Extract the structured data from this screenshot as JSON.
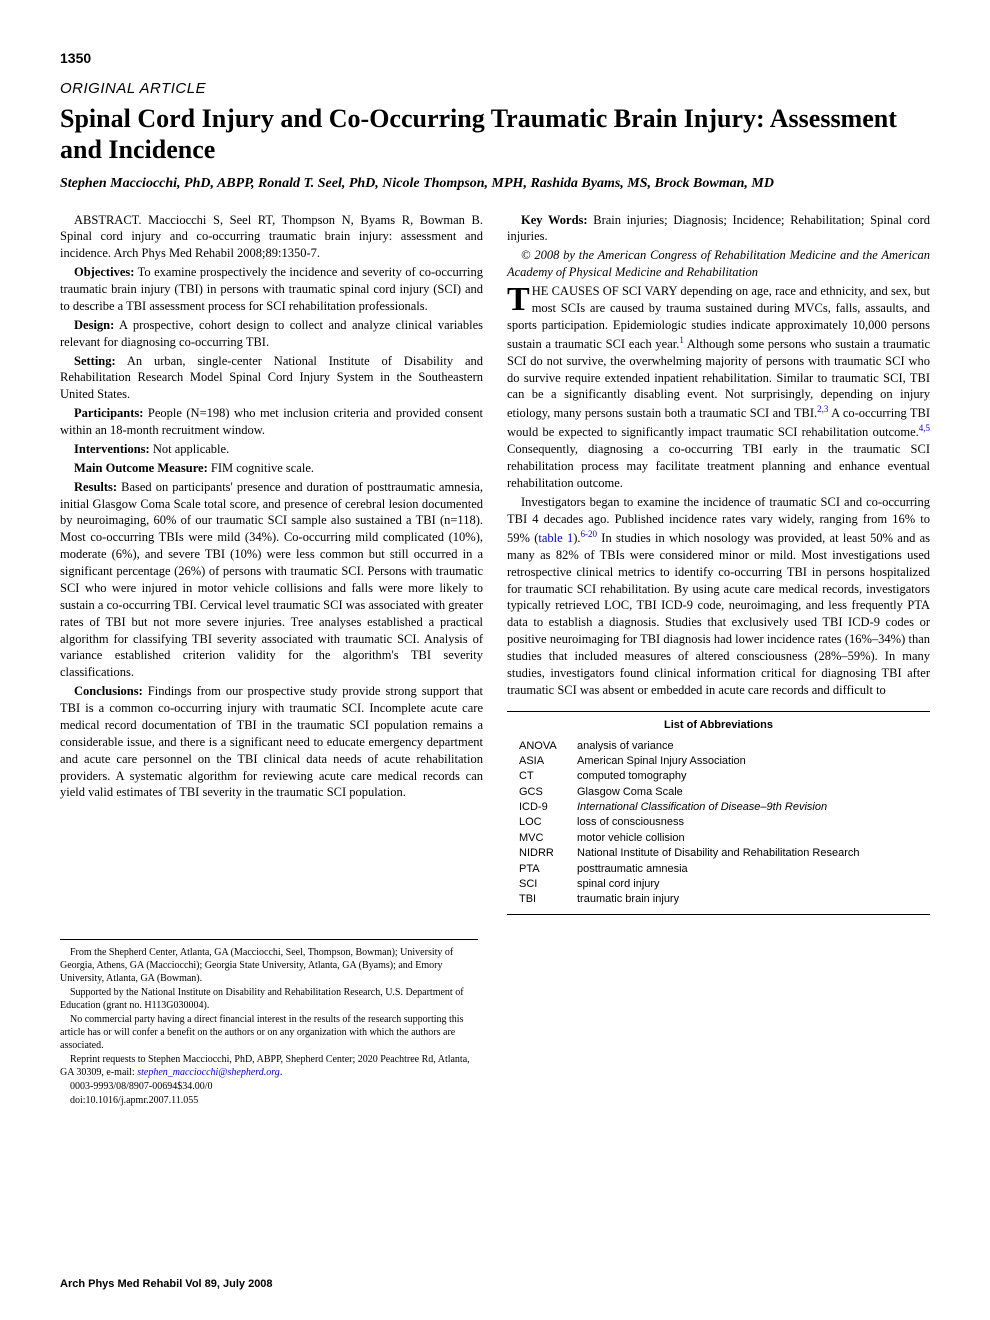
{
  "page_number": "1350",
  "article_type": "ORIGINAL ARTICLE",
  "title": "Spinal Cord Injury and Co-Occurring Traumatic Brain Injury: Assessment and Incidence",
  "authors": "Stephen Macciocchi, PhD, ABPP, Ronald T. Seel, PhD, Nicole Thompson, MPH, Rashida Byams, MS, Brock Bowman, MD",
  "abstract_citation": "ABSTRACT. Macciocchi S, Seel RT, Thompson N, Byams R, Bowman B. Spinal cord injury and co-occurring traumatic brain injury: assessment and incidence. Arch Phys Med Rehabil 2008;89:1350-7.",
  "sections": {
    "objectives": {
      "label": "Objectives:",
      "text": " To examine prospectively the incidence and severity of co-occurring traumatic brain injury (TBI) in persons with traumatic spinal cord injury (SCI) and to describe a TBI assessment process for SCI rehabilitation professionals."
    },
    "design": {
      "label": "Design:",
      "text": " A prospective, cohort design to collect and analyze clinical variables relevant for diagnosing co-occurring TBI."
    },
    "setting": {
      "label": "Setting:",
      "text": " An urban, single-center National Institute of Disability and Rehabilitation Research Model Spinal Cord Injury System in the Southeastern United States."
    },
    "participants": {
      "label": "Participants:",
      "text": " People (N=198) who met inclusion criteria and provided consent within an 18-month recruitment window."
    },
    "interventions": {
      "label": "Interventions:",
      "text": " Not applicable."
    },
    "outcome": {
      "label": "Main Outcome Measure:",
      "text": " FIM cognitive scale."
    },
    "results": {
      "label": "Results:",
      "text": " Based on participants' presence and duration of posttraumatic amnesia, initial Glasgow Coma Scale total score, and presence of cerebral lesion documented by neuroimaging, 60% of our traumatic SCI sample also sustained a TBI (n=118). Most co-occurring TBIs were mild (34%). Co-occurring mild complicated (10%), moderate (6%), and severe TBI (10%) were less common but still occurred in a significant percentage (26%) of persons with traumatic SCI. Persons with traumatic SCI who were injured in motor vehicle collisions and falls were more likely to sustain a co-occurring TBI. Cervical level traumatic SCI was associated with greater rates of TBI but not more severe injuries. Tree analyses established a practical algorithm for classifying TBI severity associated with traumatic SCI. Analysis of variance established criterion validity for the algorithm's TBI severity classifications."
    },
    "conclusions": {
      "label": "Conclusions:",
      "text": " Findings from our prospective study provide strong support that TBI is a common co-occurring injury with traumatic SCI. Incomplete acute care medical record documentation of TBI in the traumatic SCI population remains a considerable issue, and there is a significant need to educate emergency department and acute care personnel on the TBI clinical data needs of acute rehabilitation providers. A systematic algorithm for reviewing acute care medical records can yield valid estimates of TBI severity in the traumatic SCI population."
    }
  },
  "keywords": {
    "label": "Key Words:",
    "text": " Brain injuries; Diagnosis; Incidence; Rehabilitation; Spinal cord injuries."
  },
  "copyright": "© 2008 by the American Congress of Rehabilitation Medicine and the American Academy of Physical Medicine and Rehabilitation",
  "intro_dropcap": "T",
  "intro_first": "HE CAUSES OF SCI VARY depending on age, race and ethnicity, and sex, but most SCIs are caused by trauma sustained during MVCs, falls, assaults, and sports participation. Epidemiologic studies indicate approximately 10,000 persons sustain a traumatic SCI each year.",
  "intro_sup1": "1",
  "intro_second": " Although some persons who sustain a traumatic SCI do not survive, the overwhelming majority of persons with traumatic SCI who do survive require extended inpatient rehabilitation. Similar to traumatic SCI, TBI can be a significantly disabling event. Not surprisingly, depending on injury etiology, many persons sustain both a traumatic SCI and TBI.",
  "intro_sup2": "2,3",
  "intro_third": " A co-occurring TBI would be expected to significantly impact traumatic SCI rehabilitation outcome.",
  "intro_sup3": "4,5",
  "intro_fourth": " Consequently, diagnosing a co-occurring TBI early in the traumatic SCI rehabilitation process may facilitate treatment planning and enhance eventual rehabilitation outcome.",
  "para2_a": "Investigators began to examine the incidence of traumatic SCI and co-occurring TBI 4 decades ago. Published incidence rates vary widely, ranging from 16% to 59% (",
  "para2_table": "table 1",
  "para2_b": ").",
  "para2_sup": "6-20",
  "para2_c": " In studies in which nosology was provided, at least 50% and as many as 82% of TBIs were considered minor or mild. Most investigations used retrospective clinical metrics to identify co-occurring TBI in persons hospitalized for traumatic SCI rehabilitation. By using acute care medical records, investigators typically retrieved LOC, TBI ICD-9 code, neuroimaging, and less frequently PTA data to establish a diagnosis. Studies that exclusively used TBI ICD-9 codes or positive neuroimaging for TBI diagnosis had lower incidence rates (16%–34%) than studies that included measures of altered consciousness (28%–59%). In many studies, investigators found clinical information critical for diagnosing TBI after traumatic SCI was absent or embedded in acute care records and difficult to",
  "footnotes": {
    "from": "From the Shepherd Center, Atlanta, GA (Macciocchi, Seel, Thompson, Bowman); University of Georgia, Athens, GA (Macciocchi); Georgia State University, Atlanta, GA (Byams); and Emory University, Atlanta, GA (Bowman).",
    "supported": "Supported by the National Institute on Disability and Rehabilitation Research, U.S. Department of Education (grant no. H113G030004).",
    "commercial": "No commercial party having a direct financial interest in the results of the research supporting this article has or will confer a benefit on the authors or on any organization with which the authors are associated.",
    "reprint_a": "Reprint requests to Stephen Macciocchi, PhD, ABPP, Shepherd Center; 2020 Peachtree Rd, Atlanta, GA 30309, e-mail: ",
    "reprint_email": "stephen_macciocchi@shepherd.org",
    "reprint_b": ".",
    "issn": "0003-9993/08/8907-00694$34.00/0",
    "doi": "doi:10.1016/j.apmr.2007.11.055"
  },
  "abbrev_title": "List of Abbreviations",
  "abbreviations": [
    {
      "key": "ANOVA",
      "val": "analysis of variance",
      "italic": false
    },
    {
      "key": "ASIA",
      "val": "American Spinal Injury Association",
      "italic": false
    },
    {
      "key": "CT",
      "val": "computed tomography",
      "italic": false
    },
    {
      "key": "GCS",
      "val": "Glasgow Coma Scale",
      "italic": false
    },
    {
      "key": "ICD-9",
      "val": "International Classification of Disease–9th Revision",
      "italic": true
    },
    {
      "key": "LOC",
      "val": "loss of consciousness",
      "italic": false
    },
    {
      "key": "MVC",
      "val": "motor vehicle collision",
      "italic": false
    },
    {
      "key": "NIDRR",
      "val": "National Institute of Disability and Rehabilitation Research",
      "italic": false
    },
    {
      "key": "PTA",
      "val": "posttraumatic amnesia",
      "italic": false
    },
    {
      "key": "SCI",
      "val": "spinal cord injury",
      "italic": false
    },
    {
      "key": "TBI",
      "val": "traumatic brain injury",
      "italic": false
    }
  ],
  "footer": "Arch Phys Med Rehabil Vol 89, July 2008"
}
